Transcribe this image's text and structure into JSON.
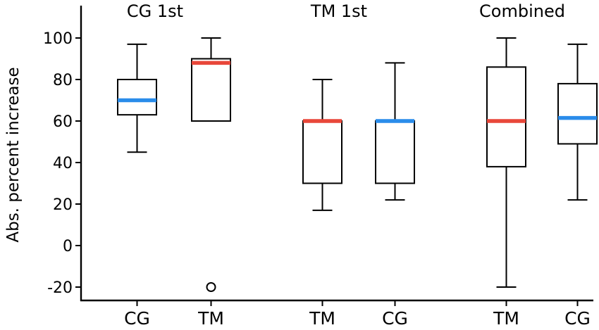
{
  "chart_data": {
    "type": "box",
    "ylabel": "Abs. percent increase",
    "yticks": [
      100,
      80,
      60,
      40,
      20,
      0,
      -20
    ],
    "ylim": [
      -25,
      115
    ],
    "groups": [
      {
        "title": "CG 1st",
        "boxes": [
          "b0",
          "b1"
        ]
      },
      {
        "title": "TM 1st",
        "boxes": [
          "b2",
          "b3"
        ]
      },
      {
        "title": "Combined",
        "boxes": [
          "b4",
          "b5"
        ]
      }
    ],
    "boxes": [
      {
        "id": "b0",
        "label": "CG",
        "min": 45,
        "q1": 63,
        "median": 70,
        "q3": 80,
        "max": 97,
        "outliers": [],
        "median_color": "#2a8cea"
      },
      {
        "id": "b1",
        "label": "TM",
        "min": 60,
        "q1": 60,
        "median": 88,
        "q3": 90,
        "max": 100,
        "outliers": [
          -20
        ],
        "median_color": "#e8473a"
      },
      {
        "id": "b2",
        "label": "TM",
        "min": 17,
        "q1": 30,
        "median": 60,
        "q3": 60,
        "max": 80,
        "outliers": [],
        "median_color": "#e8473a"
      },
      {
        "id": "b3",
        "label": "CG",
        "min": 22,
        "q1": 30,
        "median": 60,
        "q3": 60,
        "max": 88,
        "outliers": [],
        "median_color": "#2a8cea"
      },
      {
        "id": "b4",
        "label": "TM",
        "min": -20,
        "q1": 38,
        "median": 60,
        "q3": 86,
        "max": 100,
        "outliers": [],
        "median_color": "#e8473a"
      },
      {
        "id": "b5",
        "label": "CG",
        "min": 22,
        "q1": 49,
        "median": 61.5,
        "q3": 78,
        "max": 97,
        "outliers": [],
        "median_color": "#2a8cea"
      }
    ],
    "colors": {
      "TM": "#e8473a",
      "CG": "#2a8cea"
    },
    "grid": false,
    "legend": "none"
  }
}
